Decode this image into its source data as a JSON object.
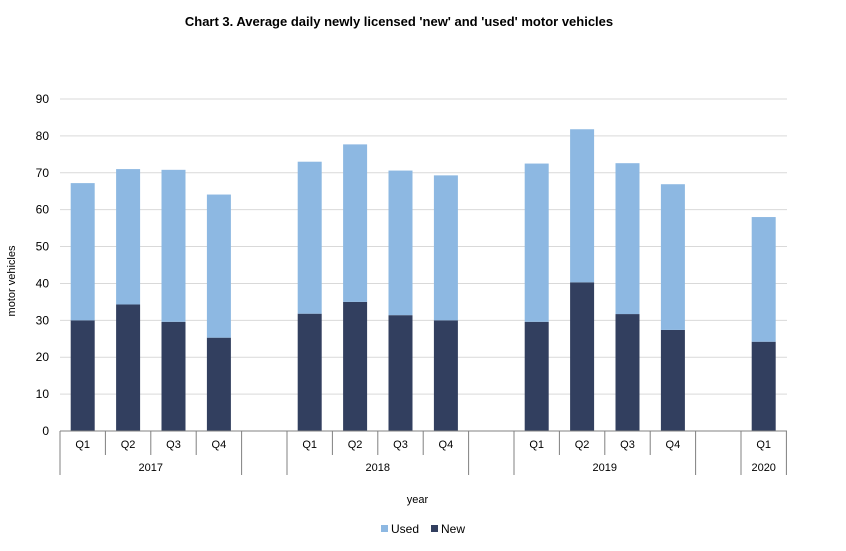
{
  "chart_data": {
    "type": "bar",
    "stacked": true,
    "title": "Chart 3.  Average daily newly licensed 'new' and 'used' motor vehicles",
    "xlabel": "year",
    "ylabel": "motor vehicles",
    "ylim": [
      0,
      90
    ],
    "yticks": [
      0,
      10,
      20,
      30,
      40,
      50,
      60,
      70,
      80,
      90
    ],
    "grid": true,
    "legend_position": "bottom",
    "groups": [
      {
        "label": "2017",
        "categories": [
          "Q1",
          "Q2",
          "Q3",
          "Q4"
        ]
      },
      {
        "label": "2018",
        "categories": [
          "Q1",
          "Q2",
          "Q3",
          "Q4"
        ]
      },
      {
        "label": "2019",
        "categories": [
          "Q1",
          "Q2",
          "Q3",
          "Q4"
        ]
      },
      {
        "label": "2020",
        "categories": [
          "Q1"
        ]
      }
    ],
    "series": [
      {
        "name": "New",
        "color": "#323f5f",
        "values": [
          30.0,
          34.3,
          29.6,
          25.3,
          31.8,
          35.0,
          31.4,
          30.0,
          29.6,
          40.3,
          31.7,
          27.4,
          24.2
        ]
      },
      {
        "name": "Used",
        "color": "#8db8e2",
        "values": [
          37.2,
          36.7,
          41.2,
          38.8,
          41.2,
          42.7,
          39.2,
          39.3,
          42.9,
          41.5,
          40.9,
          39.5,
          33.8
        ]
      }
    ],
    "legend_order": [
      "Used",
      "New"
    ]
  }
}
